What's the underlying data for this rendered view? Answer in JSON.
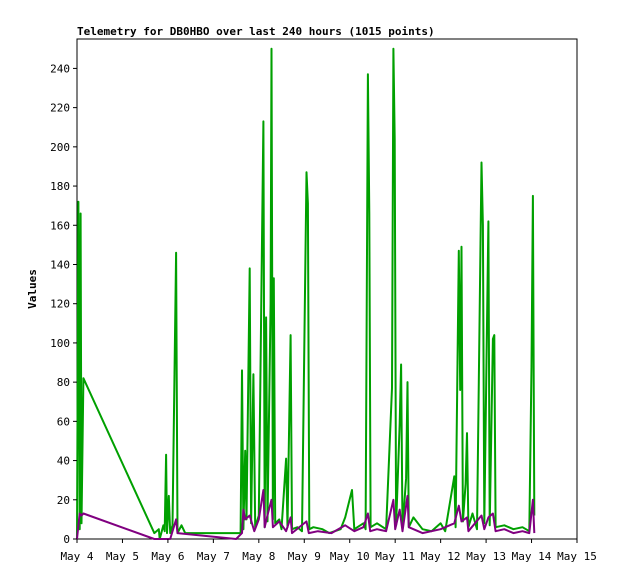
{
  "chart_data": {
    "type": "line",
    "title": "Telemetry for DB0HBO over last 240 hours (1015 points)",
    "xlabel": "",
    "ylabel": "Values",
    "xlim": [
      0,
      11
    ],
    "ylim": [
      0,
      255
    ],
    "x_tick_values": [
      0,
      1,
      2,
      3,
      4,
      5,
      6,
      7,
      8,
      9,
      10,
      11
    ],
    "x_tick_labels": [
      "May 4",
      "May 5",
      "May 6",
      "May 7",
      "May 8",
      "May 9",
      "May 10",
      "May 11",
      "May 12",
      "May 13",
      "May 14",
      "May 15"
    ],
    "y_ticks": [
      0,
      20,
      40,
      60,
      80,
      100,
      120,
      140,
      160,
      180,
      200,
      220,
      240
    ],
    "grid": false,
    "legend": "none",
    "series": [
      {
        "color": "#00a000",
        "points": [
          [
            0.0,
            0
          ],
          [
            0.03,
            172
          ],
          [
            0.06,
            5
          ],
          [
            0.08,
            166
          ],
          [
            0.1,
            8
          ],
          [
            0.14,
            82
          ],
          [
            1.7,
            3
          ],
          [
            1.8,
            5
          ],
          [
            1.82,
            0
          ],
          [
            1.9,
            7
          ],
          [
            1.93,
            4
          ],
          [
            1.96,
            43
          ],
          [
            1.98,
            3
          ],
          [
            2.02,
            22
          ],
          [
            2.05,
            3
          ],
          [
            2.1,
            7
          ],
          [
            2.18,
            146
          ],
          [
            2.21,
            3
          ],
          [
            2.3,
            7
          ],
          [
            2.38,
            3
          ],
          [
            3.5,
            3
          ],
          [
            3.6,
            3
          ],
          [
            3.63,
            86
          ],
          [
            3.66,
            5
          ],
          [
            3.7,
            45
          ],
          [
            3.73,
            10
          ],
          [
            3.8,
            138
          ],
          [
            3.83,
            8
          ],
          [
            3.88,
            84
          ],
          [
            3.92,
            6
          ],
          [
            4.0,
            12
          ],
          [
            4.1,
            213
          ],
          [
            4.13,
            6
          ],
          [
            4.16,
            113
          ],
          [
            4.19,
            9
          ],
          [
            4.26,
            120
          ],
          [
            4.28,
            250
          ],
          [
            4.31,
            10
          ],
          [
            4.33,
            133
          ],
          [
            4.36,
            8
          ],
          [
            4.45,
            10
          ],
          [
            4.5,
            5
          ],
          [
            4.6,
            41
          ],
          [
            4.63,
            6
          ],
          [
            4.7,
            104
          ],
          [
            4.73,
            5
          ],
          [
            4.85,
            6
          ],
          [
            4.95,
            4
          ],
          [
            5.05,
            187
          ],
          [
            5.08,
            171
          ],
          [
            5.11,
            5
          ],
          [
            5.2,
            6
          ],
          [
            5.4,
            5
          ],
          [
            5.55,
            3
          ],
          [
            5.8,
            5
          ],
          [
            5.9,
            11
          ],
          [
            6.05,
            25
          ],
          [
            6.1,
            5
          ],
          [
            6.3,
            8
          ],
          [
            6.35,
            5
          ],
          [
            6.4,
            237
          ],
          [
            6.43,
            166
          ],
          [
            6.46,
            6
          ],
          [
            6.6,
            8
          ],
          [
            6.8,
            5
          ],
          [
            6.93,
            77
          ],
          [
            6.96,
            250
          ],
          [
            6.99,
            204
          ],
          [
            7.02,
            7
          ],
          [
            7.1,
            59
          ],
          [
            7.13,
            89
          ],
          [
            7.16,
            5
          ],
          [
            7.24,
            31
          ],
          [
            7.27,
            80
          ],
          [
            7.3,
            6
          ],
          [
            7.4,
            11
          ],
          [
            7.6,
            5
          ],
          [
            7.8,
            4
          ],
          [
            8.0,
            8
          ],
          [
            8.1,
            4
          ],
          [
            8.3,
            32
          ],
          [
            8.33,
            6
          ],
          [
            8.4,
            147
          ],
          [
            8.43,
            76
          ],
          [
            8.46,
            149
          ],
          [
            8.49,
            9
          ],
          [
            8.55,
            28
          ],
          [
            8.58,
            54
          ],
          [
            8.61,
            6
          ],
          [
            8.7,
            13
          ],
          [
            8.8,
            5
          ],
          [
            8.9,
            192
          ],
          [
            8.93,
            160
          ],
          [
            8.96,
            8
          ],
          [
            9.05,
            162
          ],
          [
            9.08,
            7
          ],
          [
            9.15,
            102
          ],
          [
            9.18,
            104
          ],
          [
            9.21,
            6
          ],
          [
            9.4,
            7
          ],
          [
            9.6,
            5
          ],
          [
            9.8,
            6
          ],
          [
            9.95,
            4
          ],
          [
            10.0,
            88
          ],
          [
            10.03,
            175
          ],
          [
            10.06,
            12
          ]
        ]
      },
      {
        "color": "#800080",
        "points": [
          [
            0.0,
            0
          ],
          [
            0.03,
            7
          ],
          [
            0.06,
            13
          ],
          [
            0.1,
            12
          ],
          [
            0.14,
            13
          ],
          [
            1.7,
            0
          ],
          [
            1.82,
            0
          ],
          [
            2.05,
            0
          ],
          [
            2.18,
            10
          ],
          [
            2.21,
            3
          ],
          [
            3.5,
            0
          ],
          [
            3.63,
            3
          ],
          [
            3.66,
            15
          ],
          [
            3.7,
            10
          ],
          [
            3.8,
            12
          ],
          [
            3.9,
            4
          ],
          [
            4.0,
            10
          ],
          [
            4.1,
            25
          ],
          [
            4.13,
            6
          ],
          [
            4.2,
            13
          ],
          [
            4.28,
            20
          ],
          [
            4.31,
            6
          ],
          [
            4.45,
            9
          ],
          [
            4.6,
            4
          ],
          [
            4.7,
            11
          ],
          [
            4.73,
            3
          ],
          [
            5.05,
            9
          ],
          [
            5.1,
            3
          ],
          [
            5.3,
            4
          ],
          [
            5.6,
            3
          ],
          [
            5.9,
            7
          ],
          [
            6.1,
            4
          ],
          [
            6.3,
            6
          ],
          [
            6.4,
            13
          ],
          [
            6.45,
            4
          ],
          [
            6.6,
            5
          ],
          [
            6.8,
            4
          ],
          [
            6.96,
            20
          ],
          [
            7.0,
            5
          ],
          [
            7.1,
            15
          ],
          [
            7.16,
            4
          ],
          [
            7.27,
            22
          ],
          [
            7.3,
            6
          ],
          [
            7.6,
            3
          ],
          [
            8.0,
            5
          ],
          [
            8.3,
            8
          ],
          [
            8.4,
            17
          ],
          [
            8.46,
            9
          ],
          [
            8.58,
            11
          ],
          [
            8.61,
            4
          ],
          [
            8.9,
            12
          ],
          [
            8.96,
            5
          ],
          [
            9.05,
            11
          ],
          [
            9.15,
            13
          ],
          [
            9.21,
            4
          ],
          [
            9.4,
            5
          ],
          [
            9.6,
            3
          ],
          [
            9.8,
            4
          ],
          [
            9.95,
            3
          ],
          [
            10.03,
            20
          ],
          [
            10.06,
            3
          ]
        ]
      }
    ]
  }
}
